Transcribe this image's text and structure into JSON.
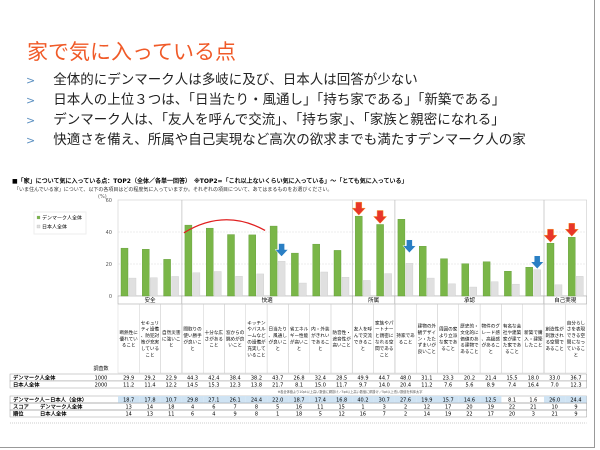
{
  "title": "家で気に入っている点",
  "bullets": [
    "全体的にデンマーク人は多岐に及び、日本人は回答が少ない",
    "日本人の上位３つは、「日当たり・風通し」「持ち家である」「新築である」",
    "デンマーク人は、「友人を呼んで交流」、「持ち家」、「家族と親密になれる」",
    "快適さを備え、所属や自己実現など高次の欲求までも満たすデンマーク人の家"
  ],
  "bullet_marker": ">",
  "chart_title": "■「家」について気に入っている点：TOP2（全体／各単一回答）　※TOP2=「これ以上ないくらい気に入っている」～「とても気に入っている」",
  "chart_subtitle": "「いま住んでいる家」について、以下の各項目はどの程度気に入っていますか。それぞれの項目について、あてはまるものをお選びください。",
  "footnote": "※各全体値より10pt以上高い数値に網掛け／5pt以上高い数値に網掛け／5pt以上低い数値を斜体太字",
  "colors": {
    "title": "#f05a28",
    "denmark": "#7ab648",
    "japan": "#e0e0e0",
    "red_arrow": "#e8352a",
    "blue_arrow": "#2a7fc4",
    "diff_fill": "#cfe3f3"
  },
  "chart_data": {
    "type": "bar",
    "yunit": "(%)",
    "ylim": [
      0,
      60
    ],
    "yticks": [
      "0",
      "20",
      "40",
      "60"
    ],
    "grid": true,
    "legend_position": "top-left",
    "series": [
      {
        "name": "デンマーク人全体",
        "n": "1000",
        "values": [
          29.9,
          29.2,
          22.9,
          44.3,
          42.4,
          38.4,
          38.2,
          43.7,
          26.8,
          32.4,
          28.5,
          49.9,
          44.7,
          48.0,
          31.1,
          23.3,
          20.2,
          21.4,
          15.5,
          18.0,
          33.0,
          36.7
        ]
      },
      {
        "name": "日本人全体",
        "n": "2000",
        "values": [
          11.2,
          11.4,
          12.2,
          14.5,
          15.3,
          12.3,
          13.8,
          21.7,
          8.1,
          15.0,
          11.7,
          9.7,
          14.0,
          20.4,
          11.2,
          7.6,
          5.6,
          8.9,
          7.4,
          16.4,
          7.0,
          12.3
        ]
      }
    ],
    "groups": [
      {
        "label": "安全",
        "count": 3
      },
      {
        "label": "快適",
        "count": 8
      },
      {
        "label": "所属",
        "count": 2
      },
      {
        "label": "承認",
        "count": 7
      },
      {
        "label": "自己実現",
        "count": 2
      }
    ],
    "categories": [
      "断熱性に優れていること",
      "セキュリティ設備、防犯対策が充実していること",
      "自然災害に強いこと",
      "間取りの使い勝手が良いこと",
      "十分な広さがあること",
      "窓からの眺めが良いこと",
      "キッチンやバスルームなどの設備が充実していること",
      "日当たり、風通しが良いこと",
      "省エネルギー性能が高いこと",
      "内・外装がきれいであること",
      "防音性・遮音性が高いこと",
      "友人を呼んで交流できること",
      "家族やパートナーと親密になれる空間であること",
      "持家であること",
      "建物の外観デザイン・たたずまいが良いこと",
      "周囲の家より立派な家であること",
      "歴史的・文化的に価値のある建物であること",
      "物件のグレード感、高級感があること",
      "有名な会社や建築家が建てた家であること",
      "新築で購入・建築したこと",
      "創造性が刺激される空間であること",
      "自分らしさを表現できる空間になっていること"
    ],
    "n_header": "調査数",
    "diff": {
      "label": "デンマーク人－日本人（全体）",
      "values": [
        18.7,
        17.8,
        10.7,
        29.8,
        27.1,
        26.1,
        24.4,
        22.0,
        18.7,
        17.4,
        16.8,
        40.2,
        30.7,
        27.6,
        19.9,
        15.7,
        14.6,
        12.5,
        8.1,
        1.6,
        26.0,
        24.4
      ]
    },
    "rank": {
      "label1": "スコア",
      "label2": "順位",
      "rows": [
        {
          "name": "デンマーク人全体",
          "values": [
            13,
            14,
            18,
            4,
            6,
            7,
            8,
            5,
            16,
            11,
            15,
            1,
            3,
            2,
            12,
            17,
            20,
            19,
            22,
            21,
            10,
            9
          ]
        },
        {
          "name": "日本人全体",
          "values": [
            14,
            13,
            11,
            6,
            4,
            9,
            8,
            1,
            18,
            5,
            12,
            16,
            7,
            2,
            14,
            19,
            22,
            17,
            20,
            3,
            21,
            9
          ]
        }
      ]
    },
    "red_arrows": [
      11,
      12,
      20,
      21
    ],
    "blue_arrows": [
      7,
      13,
      19
    ],
    "arc_span": [
      3,
      6
    ]
  }
}
